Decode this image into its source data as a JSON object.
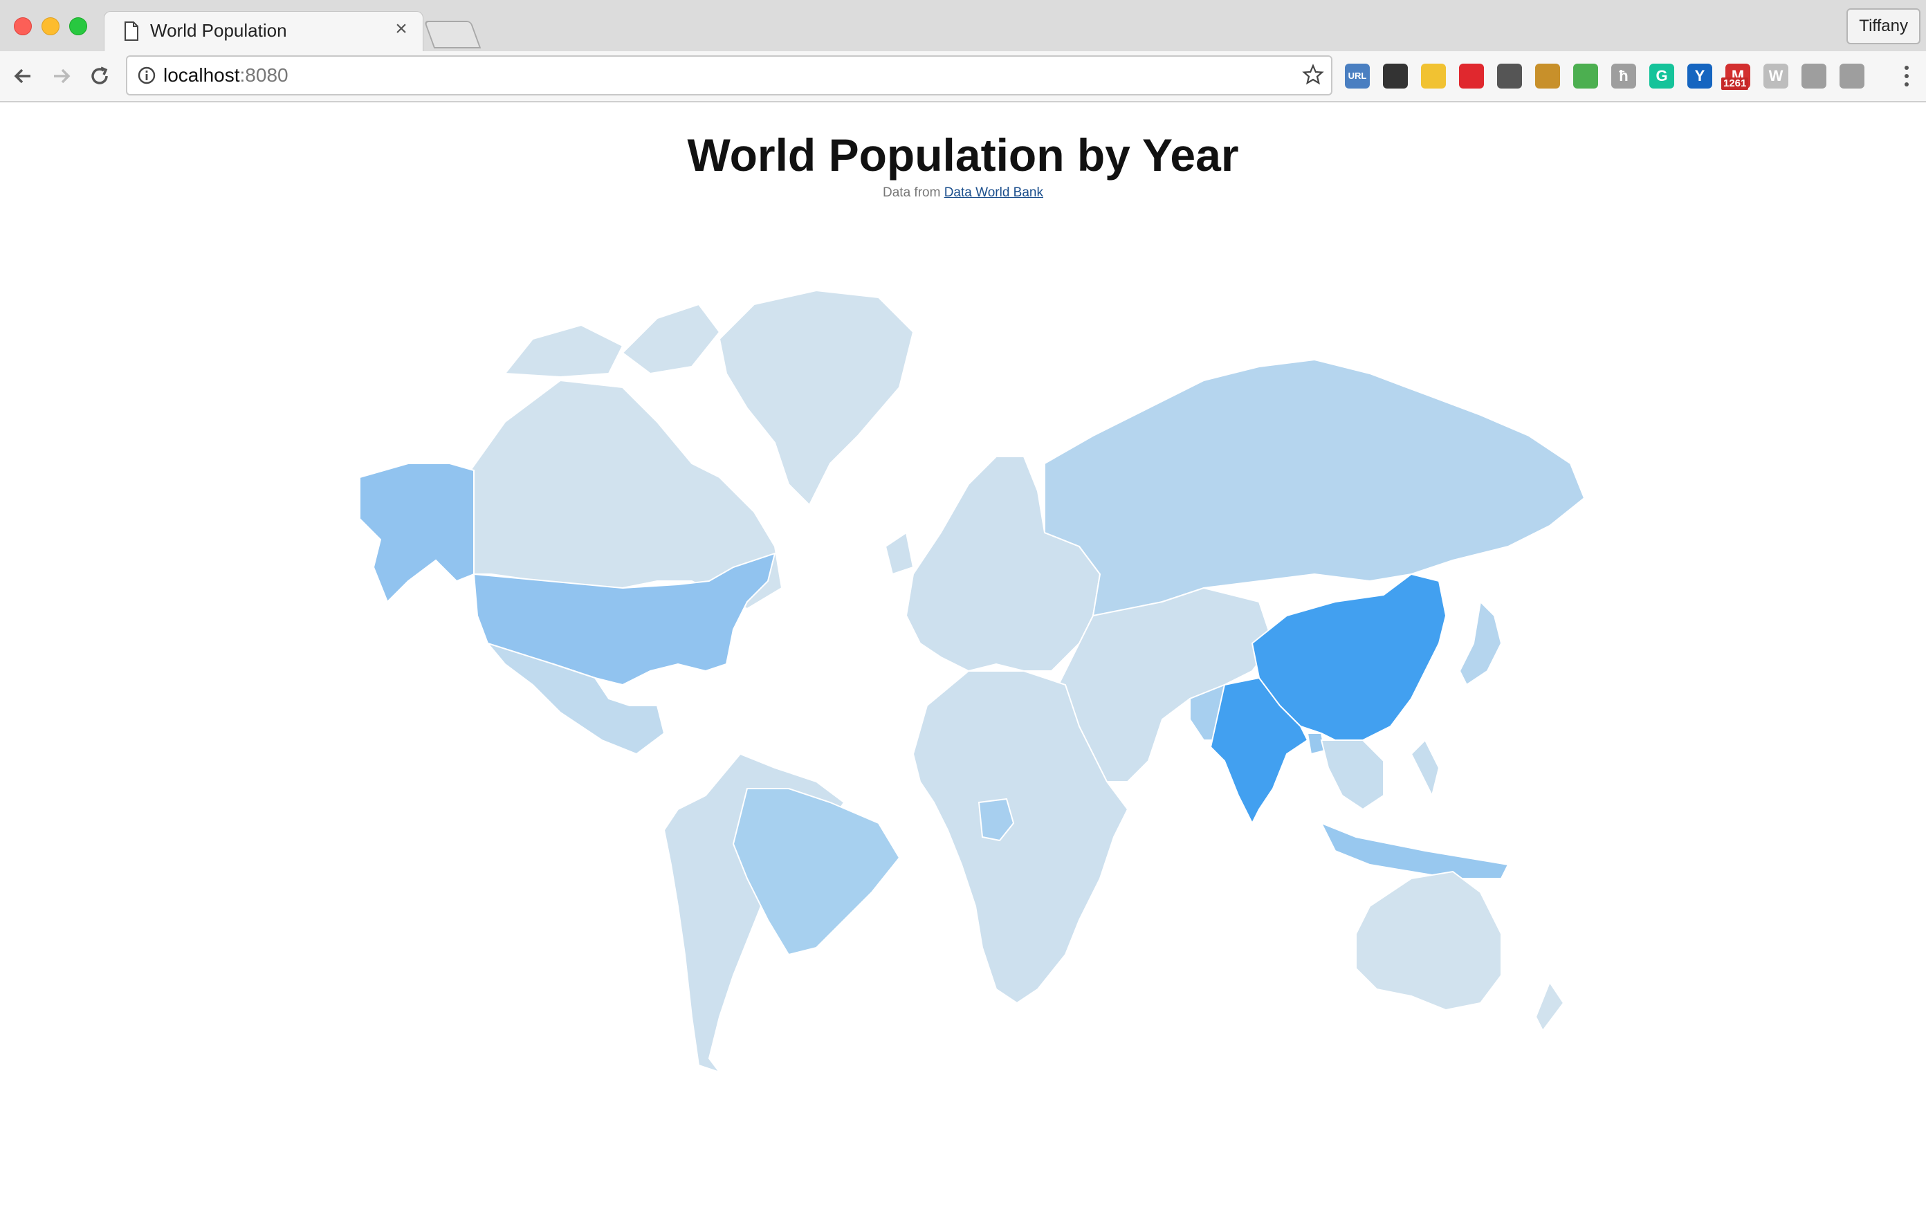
{
  "browser": {
    "tab_title": "World Population",
    "url_host": "localhost",
    "url_port": ":8080",
    "profile_name": "Tiffany",
    "badge_count": "1261",
    "extensions": [
      {
        "name": "pdf-extension-icon",
        "glyph": "URL",
        "color": "#4a7fc1"
      },
      {
        "name": "gear-extension-icon",
        "glyph": "",
        "color": "#333333"
      },
      {
        "name": "note-extension-icon",
        "glyph": "",
        "color": "#f1c232"
      },
      {
        "name": "opera-extension-icon",
        "glyph": "",
        "color": "#e0282e"
      },
      {
        "name": "eyedropper-extension-icon",
        "glyph": "",
        "color": "#555555"
      },
      {
        "name": "ruler-extension-icon",
        "glyph": "",
        "color": "#c8902a"
      },
      {
        "name": "world-extension-icon",
        "glyph": "",
        "color": "#4caf50"
      },
      {
        "name": "h-extension-icon",
        "glyph": "ħ",
        "color": "#9e9e9e"
      },
      {
        "name": "grammarly-extension-icon",
        "glyph": "G",
        "color": "#15c39a"
      },
      {
        "name": "v-extension-icon",
        "glyph": "Y",
        "color": "#1565c0"
      },
      {
        "name": "gmail-extension-icon",
        "glyph": "M",
        "color": "#d32f2f"
      },
      {
        "name": "w-extension-icon",
        "glyph": "W",
        "color": "#bdbdbd"
      },
      {
        "name": "dropbox-extension-icon",
        "glyph": "",
        "color": "#9e9e9e"
      },
      {
        "name": "drive-extension-icon",
        "glyph": "",
        "color": "#9e9e9e"
      }
    ]
  },
  "page": {
    "title": "World Population by Year",
    "subtitle_prefix": "Data from",
    "subtitle_link": "Data World Bank"
  },
  "chart_data": {
    "type": "choropleth",
    "color_scale": {
      "low": "#d1e2ee",
      "high": "#42a0f0"
    },
    "regions": [
      {
        "name": "China",
        "level": 1.0,
        "color": "#42a0f0"
      },
      {
        "name": "India",
        "level": 0.95,
        "color": "#42a0f0"
      },
      {
        "name": "United States",
        "level": 0.55,
        "color": "#91c3ef"
      },
      {
        "name": "Alaska",
        "level": 0.55,
        "color": "#91c3ef"
      },
      {
        "name": "Indonesia",
        "level": 0.5,
        "color": "#98c8ef"
      },
      {
        "name": "Brazil",
        "level": 0.4,
        "color": "#a7d0ef"
      },
      {
        "name": "Pakistan",
        "level": 0.3,
        "color": "#a7cfef"
      },
      {
        "name": "Nigeria",
        "level": 0.35,
        "color": "#a7cfef"
      },
      {
        "name": "Bangladesh",
        "level": 0.35,
        "color": "#98c8ef"
      },
      {
        "name": "Russia",
        "level": 0.2,
        "color": "#b5d5ee"
      },
      {
        "name": "Mexico",
        "level": 0.15,
        "color": "#c0daee"
      },
      {
        "name": "Japan",
        "level": 0.2,
        "color": "#b5d5ee"
      },
      {
        "name": "Canada",
        "level": 0.0,
        "color": "#d1e2ee"
      },
      {
        "name": "Greenland",
        "level": 0.0,
        "color": "#d1e2ee"
      },
      {
        "name": "Australia",
        "level": 0.0,
        "color": "#d1e2ee"
      },
      {
        "name": "Africa (other)",
        "level": 0.05,
        "color": "#cde0ee"
      },
      {
        "name": "Europe (other)",
        "level": 0.05,
        "color": "#cde0ee"
      },
      {
        "name": "South America (other)",
        "level": 0.05,
        "color": "#cde0ee"
      },
      {
        "name": "Middle East & Central Asia",
        "level": 0.05,
        "color": "#cde0ee"
      },
      {
        "name": "Southeast Asia",
        "level": 0.1,
        "color": "#c6ddee"
      }
    ]
  }
}
